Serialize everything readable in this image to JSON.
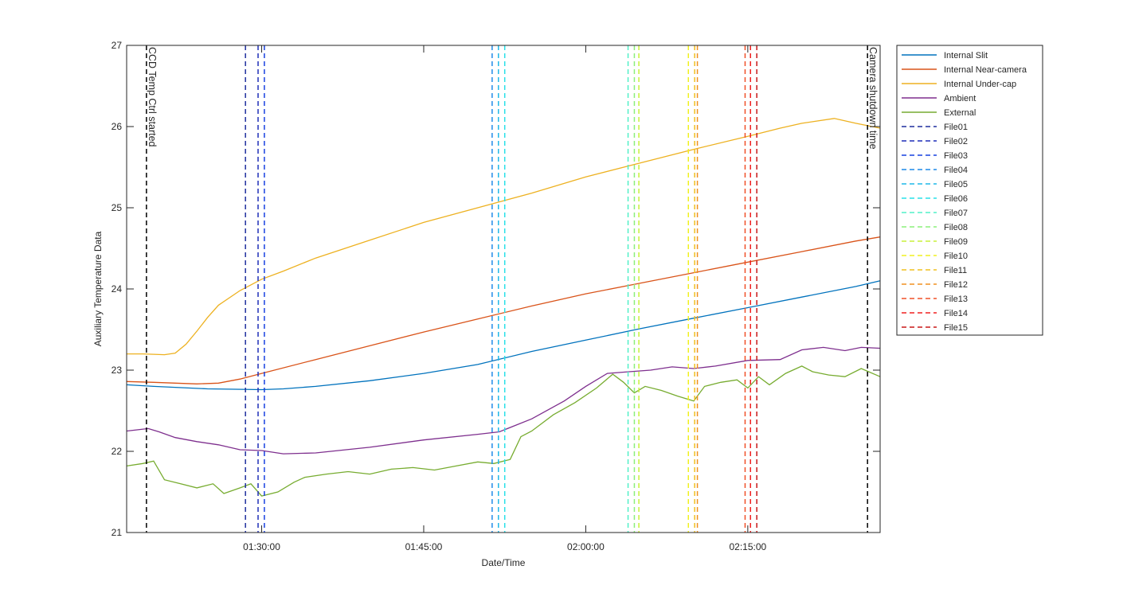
{
  "chart_data": {
    "type": "line",
    "title": "",
    "xlabel": "Date/Time",
    "ylabel": "Auxiliary Temperature Data",
    "xlim": [
      "01:17:30",
      "02:27:15"
    ],
    "ylim": [
      21,
      27
    ],
    "xticks": [
      "01:30:00",
      "01:45:00",
      "02:00:00",
      "02:15:00"
    ],
    "yticks": [
      21,
      22,
      23,
      24,
      25,
      26,
      27
    ],
    "grid": false,
    "legend_position": "outside-right",
    "series": [
      {
        "name": "Internal Slit",
        "color": "#0072BD",
        "x": [
          "01:17:30",
          "01:20:00",
          "01:25:00",
          "01:30:00",
          "01:32:00",
          "01:35:00",
          "01:40:00",
          "01:45:00",
          "01:50:00",
          "01:55:00",
          "02:00:00",
          "02:05:00",
          "02:10:00",
          "02:15:00",
          "02:20:00",
          "02:25:00",
          "02:27:15"
        ],
        "y": [
          22.82,
          22.8,
          22.77,
          22.76,
          22.77,
          22.8,
          22.87,
          22.96,
          23.07,
          23.23,
          23.37,
          23.51,
          23.64,
          23.77,
          23.9,
          24.03,
          24.1
        ]
      },
      {
        "name": "Internal Near-camera",
        "color": "#D95319",
        "x": [
          "01:17:30",
          "01:20:00",
          "01:22:00",
          "01:24:00",
          "01:26:00",
          "01:28:00",
          "01:30:00",
          "01:35:00",
          "01:40:00",
          "01:45:00",
          "01:50:00",
          "01:55:00",
          "02:00:00",
          "02:05:00",
          "02:10:00",
          "02:15:00",
          "02:20:00",
          "02:25:00",
          "02:27:15"
        ],
        "y": [
          22.86,
          22.85,
          22.84,
          22.83,
          22.84,
          22.89,
          22.96,
          23.13,
          23.3,
          23.47,
          23.63,
          23.79,
          23.94,
          24.07,
          24.2,
          24.33,
          24.46,
          24.59,
          24.64
        ]
      },
      {
        "name": "Internal Under-cap",
        "color": "#EDB120",
        "x": [
          "01:17:30",
          "01:19:00",
          "01:21:00",
          "01:22:00",
          "01:23:00",
          "01:24:00",
          "01:25:00",
          "01:26:00",
          "01:28:00",
          "01:30:00",
          "01:32:00",
          "01:35:00",
          "01:40:00",
          "01:45:00",
          "01:50:00",
          "01:55:00",
          "02:00:00",
          "02:05:00",
          "02:10:00",
          "02:15:00",
          "02:18:00",
          "02:20:00",
          "02:23:00",
          "02:25:00",
          "02:27:15"
        ],
        "y": [
          23.2,
          23.2,
          23.19,
          23.21,
          23.32,
          23.48,
          23.65,
          23.8,
          23.98,
          24.12,
          24.22,
          24.38,
          24.6,
          24.82,
          25.0,
          25.18,
          25.38,
          25.55,
          25.72,
          25.88,
          25.98,
          26.04,
          26.1,
          26.04,
          25.98
        ]
      },
      {
        "name": "Ambient",
        "color": "#7E2F8E",
        "x": [
          "01:17:30",
          "01:19:30",
          "01:20:30",
          "01:22:00",
          "01:24:00",
          "01:26:00",
          "01:28:00",
          "01:30:00",
          "01:32:00",
          "01:35:00",
          "01:40:00",
          "01:45:00",
          "01:50:00",
          "01:52:00",
          "01:55:00",
          "01:58:00",
          "02:00:00",
          "02:02:00",
          "02:04:00",
          "02:06:00",
          "02:08:00",
          "02:10:00",
          "02:12:00",
          "02:15:00",
          "02:18:00",
          "02:20:00",
          "02:22:00",
          "02:24:00",
          "02:25:30",
          "02:27:15"
        ],
        "y": [
          22.25,
          22.28,
          22.24,
          22.17,
          22.12,
          22.08,
          22.02,
          22.01,
          21.97,
          21.98,
          22.05,
          22.14,
          22.21,
          22.24,
          22.4,
          22.62,
          22.8,
          22.96,
          22.98,
          23.0,
          23.04,
          23.02,
          23.05,
          23.12,
          23.13,
          23.25,
          23.28,
          23.24,
          23.28,
          23.27
        ]
      },
      {
        "name": "External",
        "color": "#77AC30",
        "x": [
          "01:17:30",
          "01:19:00",
          "01:20:00",
          "01:21:00",
          "01:22:30",
          "01:24:00",
          "01:25:30",
          "01:26:30",
          "01:28:00",
          "01:29:00",
          "01:30:00",
          "01:31:30",
          "01:33:00",
          "01:34:00",
          "01:36:00",
          "01:38:00",
          "01:40:00",
          "01:42:00",
          "01:44:00",
          "01:46:00",
          "01:48:00",
          "01:50:00",
          "01:51:30",
          "01:53:00",
          "01:54:00",
          "01:55:00",
          "01:57:00",
          "01:59:00",
          "02:01:00",
          "02:02:30",
          "02:03:30",
          "02:04:30",
          "02:05:30",
          "02:07:00",
          "02:08:30",
          "02:10:00",
          "02:11:00",
          "02:12:30",
          "02:14:00",
          "02:15:00",
          "02:16:00",
          "02:17:00",
          "02:18:30",
          "02:20:00",
          "02:21:00",
          "02:22:30",
          "02:24:00",
          "02:25:30",
          "02:27:15"
        ],
        "y": [
          21.82,
          21.85,
          21.88,
          21.65,
          21.6,
          21.55,
          21.6,
          21.48,
          21.55,
          21.6,
          21.45,
          21.5,
          21.62,
          21.68,
          21.72,
          21.75,
          21.72,
          21.78,
          21.8,
          21.77,
          21.82,
          21.87,
          21.85,
          21.9,
          22.18,
          22.25,
          22.45,
          22.6,
          22.78,
          22.95,
          22.85,
          22.72,
          22.8,
          22.75,
          22.68,
          22.62,
          22.8,
          22.85,
          22.88,
          22.78,
          22.92,
          22.82,
          22.96,
          23.05,
          22.98,
          22.94,
          22.92,
          23.02,
          22.92
        ]
      }
    ],
    "vertical_markers": [
      {
        "name": "CCD Temp Ctrl started",
        "time": "01:19:20",
        "color": "#000000",
        "label": "CCD Temp Ctrl started"
      },
      {
        "name": "File01",
        "time": "01:28:30",
        "color": "#1F2F9E"
      },
      {
        "name": "File02",
        "time": "01:29:40",
        "color": "#1F2FB8"
      },
      {
        "name": "File03",
        "time": "01:30:15",
        "color": "#1740E0"
      },
      {
        "name": "File04",
        "time": "01:51:20",
        "color": "#1F8AE8"
      },
      {
        "name": "File05",
        "time": "01:51:55",
        "color": "#1FB8E8"
      },
      {
        "name": "File06",
        "time": "01:52:30",
        "color": "#28E0E8"
      },
      {
        "name": "File07",
        "time": "02:03:55",
        "color": "#50F0C8"
      },
      {
        "name": "File08",
        "time": "02:04:30",
        "color": "#8CF07A"
      },
      {
        "name": "File09",
        "time": "02:04:55",
        "color": "#C8F03A"
      },
      {
        "name": "File10",
        "time": "02:09:30",
        "color": "#F0F020"
      },
      {
        "name": "File11",
        "time": "02:10:05",
        "color": "#F0C020"
      },
      {
        "name": "File12",
        "time": "02:10:20",
        "color": "#F09020"
      },
      {
        "name": "File13",
        "time": "02:14:45",
        "color": "#F05028"
      },
      {
        "name": "File14",
        "time": "02:15:15",
        "color": "#F02020"
      },
      {
        "name": "File15",
        "time": "02:15:50",
        "color": "#C81818"
      },
      {
        "name": "Camera shutdown time",
        "time": "02:26:05",
        "color": "#000000",
        "label": "Camera shutdown time"
      }
    ],
    "legend": [
      "Internal Slit",
      "Internal Near-camera",
      "Internal Under-cap",
      "Ambient",
      "External",
      "File01",
      "File02",
      "File03",
      "File04",
      "File05",
      "File06",
      "File07",
      "File08",
      "File09",
      "File10",
      "File11",
      "File12",
      "File13",
      "File14",
      "File15"
    ]
  }
}
